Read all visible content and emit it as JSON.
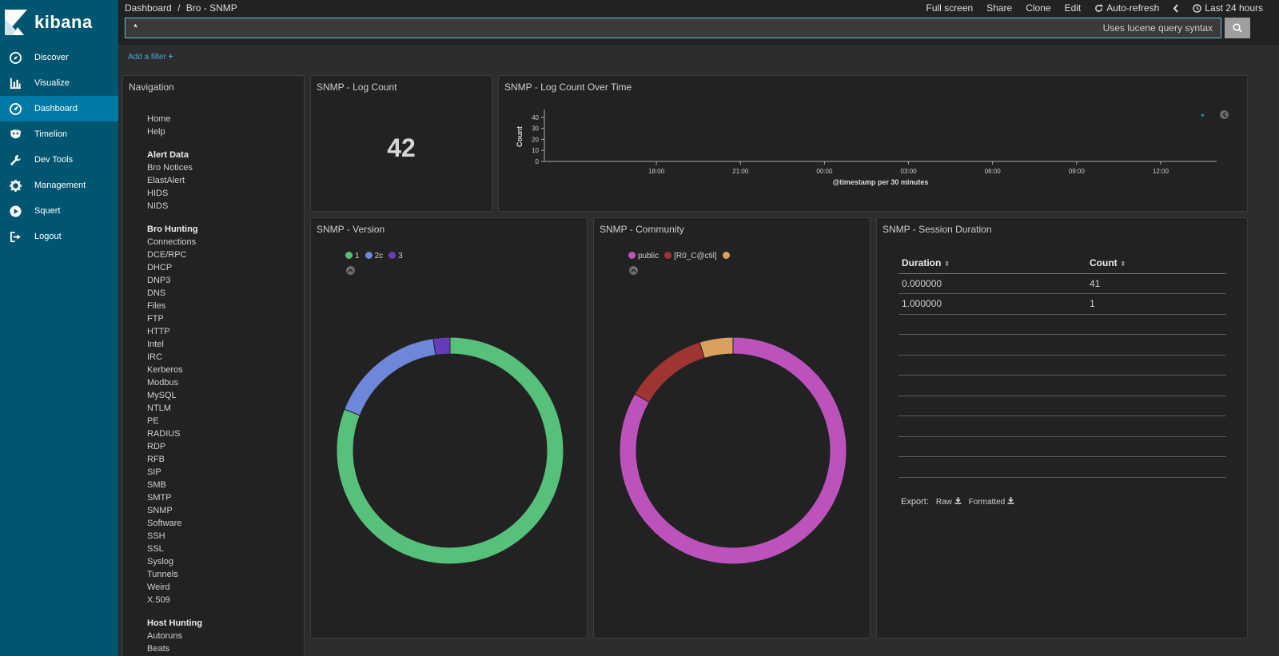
{
  "app": {
    "name": "kibana"
  },
  "sidebar": {
    "items": [
      {
        "label": "Discover",
        "icon": "compass-icon",
        "active": false
      },
      {
        "label": "Visualize",
        "icon": "bar-chart-icon",
        "active": false
      },
      {
        "label": "Dashboard",
        "icon": "dashboard-gauge-icon",
        "active": true
      },
      {
        "label": "Timelion",
        "icon": "timelion-mask-icon",
        "active": false
      },
      {
        "label": "Dev Tools",
        "icon": "wrench-icon",
        "active": false
      },
      {
        "label": "Management",
        "icon": "gear-icon",
        "active": false
      },
      {
        "label": "Squert",
        "icon": "play-circle-icon",
        "active": false
      },
      {
        "label": "Logout",
        "icon": "sign-out-icon",
        "active": false
      }
    ]
  },
  "breadcrumb": {
    "parent": "Dashboard",
    "sep": "/",
    "current": "Bro - SNMP"
  },
  "top_actions": {
    "full_screen": "Full screen",
    "share": "Share",
    "clone": "Clone",
    "edit": "Edit",
    "auto_refresh": "Auto-refresh",
    "time_range": "Last 24 hours"
  },
  "search": {
    "value": "*",
    "hint": "Uses lucene query syntax"
  },
  "filters": {
    "add_filter": "Add a filter"
  },
  "navigation_panel": {
    "title": "Navigation",
    "general": [
      "Home",
      "Help"
    ],
    "groups": [
      {
        "header": "Alert Data",
        "items": [
          "Bro Notices",
          "ElastAlert",
          "HIDS",
          "NIDS"
        ]
      },
      {
        "header": "Bro Hunting",
        "items": [
          "Connections",
          "DCE/RPC",
          "DHCP",
          "DNP3",
          "DNS",
          "Files",
          "FTP",
          "HTTP",
          "Intel",
          "IRC",
          "Kerberos",
          "Modbus",
          "MySQL",
          "NTLM",
          "PE",
          "RADIUS",
          "RDP",
          "RFB",
          "SIP",
          "SMB",
          "SMTP",
          "SNMP",
          "Software",
          "SSH",
          "SSL",
          "Syslog",
          "Tunnels",
          "Weird",
          "X.509"
        ]
      },
      {
        "header": "Host Hunting",
        "items": [
          "Autoruns",
          "Beats"
        ]
      }
    ]
  },
  "log_count_panel": {
    "title": "SNMP - Log Count",
    "value": "42"
  },
  "log_count_time_panel": {
    "title": "SNMP - Log Count Over Time",
    "chart_data": {
      "type": "line",
      "ylabel": "Count",
      "xlabel": "@timestamp per 30 minutes",
      "y_ticks": [
        "0",
        "10",
        "20",
        "30",
        "40"
      ],
      "x_ticks": [
        "18:00",
        "21:00",
        "00:00",
        "03:00",
        "06:00",
        "09:00",
        "12:00"
      ],
      "ylim": [
        0,
        45
      ],
      "points": [
        {
          "x": "13:30",
          "y": 42
        }
      ],
      "point_color": "#00a69b"
    }
  },
  "version_panel": {
    "title": "SNMP - Version",
    "chart_data": {
      "type": "pie",
      "categories": [
        "1",
        "2c",
        "3"
      ],
      "values": [
        34,
        7,
        1
      ],
      "colors": [
        "#57c17b",
        "#6f87d8",
        "#663db8"
      ]
    }
  },
  "community_panel": {
    "title": "SNMP - Community",
    "chart_data": {
      "type": "pie",
      "categories": [
        "public",
        "[R0_C@ctil]",
        ""
      ],
      "values": [
        35,
        5,
        2
      ],
      "colors": [
        "#bc52bc",
        "#9e3533",
        "#daa05d"
      ]
    }
  },
  "duration_panel": {
    "title": "SNMP - Session Duration",
    "columns": [
      "Duration",
      "Count"
    ],
    "rows": [
      [
        "0.000000",
        "41"
      ],
      [
        "1.000000",
        "1"
      ]
    ],
    "export_label": "Export:",
    "raw_label": "Raw",
    "formatted_label": "Formatted"
  }
}
